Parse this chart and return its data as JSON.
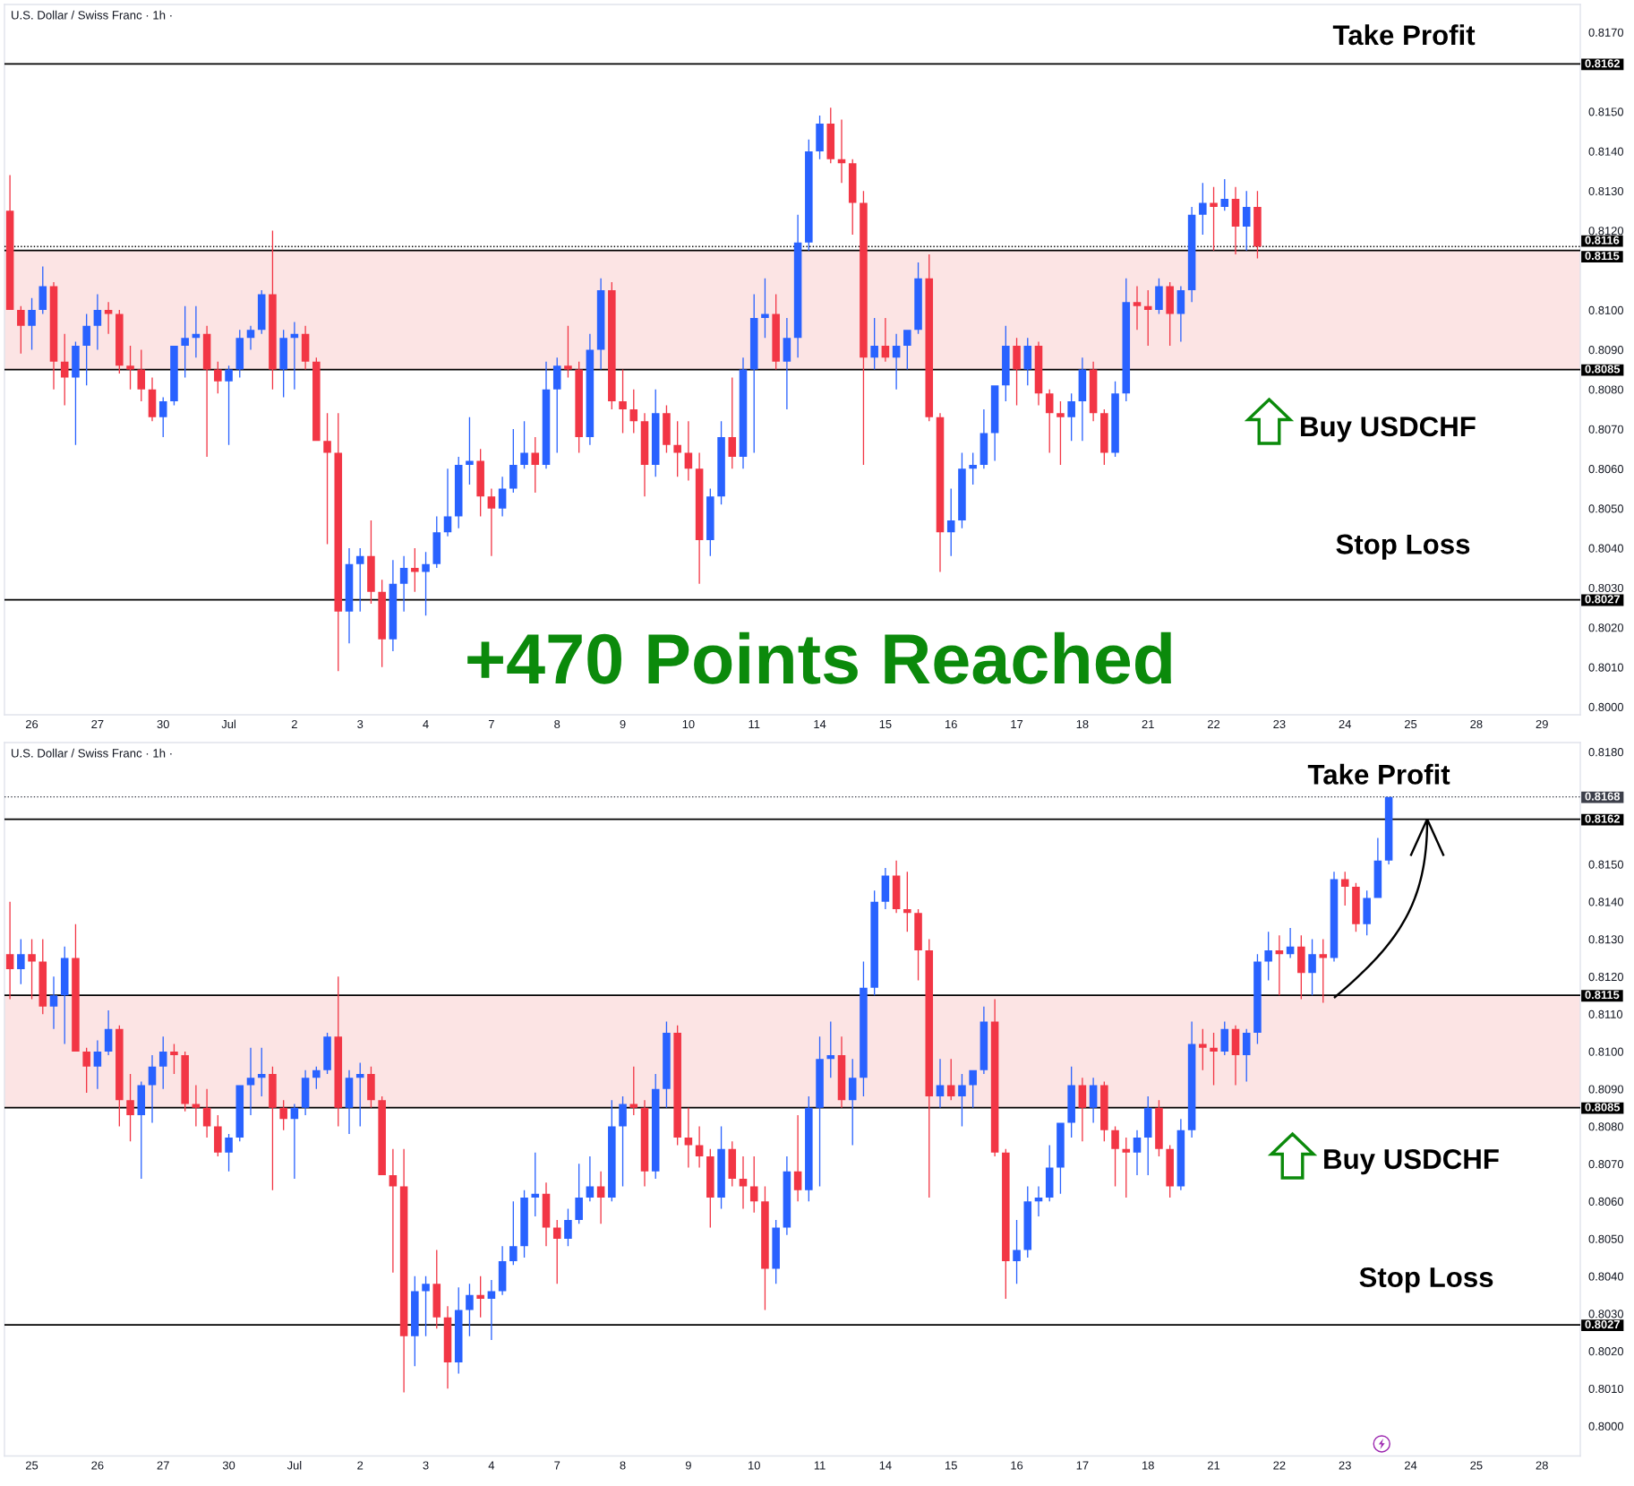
{
  "chart_data": [
    {
      "type": "candlestick",
      "title": "U.S. Dollar / Swiss Franc · 1h ·",
      "categories": [
        null,
        null,
        "26",
        null,
        null,
        null,
        null,
        null,
        "27",
        null,
        null,
        null,
        null,
        null,
        "30",
        null,
        null,
        null,
        null,
        null,
        "Jul",
        null,
        null,
        null,
        null,
        null,
        "2",
        null,
        null,
        null,
        null,
        null,
        "3",
        null,
        null,
        null,
        null,
        null,
        "4",
        null,
        null,
        null,
        null,
        null,
        "7",
        null,
        null,
        null,
        null,
        null,
        "8",
        null,
        null,
        null,
        null,
        null,
        "9",
        null,
        null,
        null,
        null,
        null,
        "10",
        null,
        null,
        null,
        null,
        null,
        "11",
        null,
        null,
        null,
        null,
        null,
        "14",
        null,
        null,
        null,
        null,
        null,
        "15",
        null,
        null,
        null,
        null,
        null,
        "16",
        null,
        null,
        null,
        null,
        null,
        "17",
        null,
        null,
        null,
        null,
        null,
        "18",
        null,
        null,
        null,
        null,
        null,
        "21",
        null,
        null,
        null,
        null,
        null,
        "22",
        null,
        null,
        null,
        null,
        null,
        "23",
        null,
        null,
        null,
        null,
        null,
        "24",
        null,
        null,
        null,
        null,
        null,
        "25",
        null,
        null,
        null,
        null,
        null,
        "28",
        null,
        null,
        null,
        null,
        null,
        "29",
        null,
        null,
        null
      ],
      "ohlc": [
        [
          0.8125,
          0.8134,
          0.81,
          0.81
        ],
        [
          0.81,
          0.8101,
          0.8089,
          0.8096
        ],
        [
          0.8096,
          0.8103,
          0.809,
          0.81
        ],
        [
          0.81,
          0.8111,
          0.8099,
          0.8106
        ],
        [
          0.8106,
          0.8107,
          0.808,
          0.8087
        ],
        [
          0.8087,
          0.8094,
          0.8076,
          0.8083
        ],
        [
          0.8083,
          0.8092,
          0.8066,
          0.8091
        ],
        [
          0.8091,
          0.8099,
          0.8081,
          0.8096
        ],
        [
          0.8096,
          0.8104,
          0.809,
          0.81
        ],
        [
          0.81,
          0.8102,
          0.8094,
          0.8099
        ],
        [
          0.8099,
          0.81,
          0.8084,
          0.8086
        ],
        [
          0.8086,
          0.8091,
          0.808,
          0.8085
        ],
        [
          0.8085,
          0.809,
          0.8077,
          0.808
        ],
        [
          0.808,
          0.8083,
          0.8072,
          0.8073
        ],
        [
          0.8073,
          0.8078,
          0.8068,
          0.8077
        ],
        [
          0.8077,
          0.8091,
          0.8076,
          0.8091
        ],
        [
          0.8091,
          0.8101,
          0.8083,
          0.8093
        ],
        [
          0.8093,
          0.8101,
          0.8088,
          0.8094
        ],
        [
          0.8094,
          0.8096,
          0.8063,
          0.8085
        ],
        [
          0.8085,
          0.8087,
          0.8079,
          0.8082
        ],
        [
          0.8082,
          0.8086,
          0.8066,
          0.8085
        ],
        [
          0.8085,
          0.8095,
          0.8083,
          0.8093
        ],
        [
          0.8093,
          0.8096,
          0.809,
          0.8095
        ],
        [
          0.8095,
          0.8105,
          0.8094,
          0.8104
        ],
        [
          0.8104,
          0.812,
          0.808,
          0.8085
        ],
        [
          0.8085,
          0.8095,
          0.8078,
          0.8093
        ],
        [
          0.8093,
          0.8097,
          0.808,
          0.8094
        ],
        [
          0.8094,
          0.8096,
          0.8085,
          0.8087
        ],
        [
          0.8087,
          0.8088,
          0.8067,
          0.8067
        ],
        [
          0.8067,
          0.8074,
          0.8041,
          0.8064
        ],
        [
          0.8064,
          0.8074,
          0.8009,
          0.8024
        ],
        [
          0.8024,
          0.804,
          0.8016,
          0.8036
        ],
        [
          0.8036,
          0.804,
          0.8024,
          0.8038
        ],
        [
          0.8038,
          0.8047,
          0.8026,
          0.8029
        ],
        [
          0.8029,
          0.8032,
          0.801,
          0.8017
        ],
        [
          0.8017,
          0.8037,
          0.8014,
          0.8031
        ],
        [
          0.8031,
          0.8038,
          0.8024,
          0.8035
        ],
        [
          0.8035,
          0.804,
          0.8029,
          0.8034
        ],
        [
          0.8034,
          0.8039,
          0.8023,
          0.8036
        ],
        [
          0.8036,
          0.8048,
          0.8035,
          0.8044
        ],
        [
          0.8044,
          0.806,
          0.8043,
          0.8048
        ],
        [
          0.8048,
          0.8063,
          0.8045,
          0.8061
        ],
        [
          0.8061,
          0.8073,
          0.8056,
          0.8062
        ],
        [
          0.8062,
          0.8065,
          0.8048,
          0.8053
        ],
        [
          0.8053,
          0.8055,
          0.8038,
          0.805
        ],
        [
          0.805,
          0.8058,
          0.8048,
          0.8055
        ],
        [
          0.8055,
          0.807,
          0.8054,
          0.8061
        ],
        [
          0.8061,
          0.8072,
          0.806,
          0.8064
        ],
        [
          0.8064,
          0.8068,
          0.8054,
          0.8061
        ],
        [
          0.8061,
          0.8087,
          0.806,
          0.808
        ],
        [
          0.808,
          0.8088,
          0.8064,
          0.8086
        ],
        [
          0.8086,
          0.8096,
          0.8083,
          0.8085
        ],
        [
          0.8085,
          0.8087,
          0.8064,
          0.8068
        ],
        [
          0.8068,
          0.8094,
          0.8066,
          0.809
        ],
        [
          0.809,
          0.8108,
          0.8085,
          0.8105
        ],
        [
          0.8105,
          0.8107,
          0.8075,
          0.8077
        ],
        [
          0.8077,
          0.8085,
          0.8069,
          0.8075
        ],
        [
          0.8075,
          0.808,
          0.8069,
          0.8072
        ],
        [
          0.8072,
          0.8074,
          0.8053,
          0.8061
        ],
        [
          0.8061,
          0.808,
          0.8058,
          0.8074
        ],
        [
          0.8074,
          0.8076,
          0.8064,
          0.8066
        ],
        [
          0.8066,
          0.8072,
          0.8058,
          0.8064
        ],
        [
          0.8064,
          0.8072,
          0.8057,
          0.806
        ],
        [
          0.806,
          0.8064,
          0.8031,
          0.8042
        ],
        [
          0.8042,
          0.8055,
          0.8038,
          0.8053
        ],
        [
          0.8053,
          0.8072,
          0.8051,
          0.8068
        ],
        [
          0.8068,
          0.8083,
          0.806,
          0.8063
        ],
        [
          0.8063,
          0.8088,
          0.806,
          0.8085
        ],
        [
          0.8085,
          0.8104,
          0.8064,
          0.8098
        ],
        [
          0.8098,
          0.8108,
          0.8093,
          0.8099
        ],
        [
          0.8099,
          0.8104,
          0.8085,
          0.8087
        ],
        [
          0.8087,
          0.8098,
          0.8075,
          0.8093
        ],
        [
          0.8093,
          0.8124,
          0.8088,
          0.8117
        ],
        [
          0.8117,
          0.8143,
          0.8115,
          0.814
        ],
        [
          0.814,
          0.8149,
          0.8138,
          0.8147
        ],
        [
          0.8147,
          0.8151,
          0.8137,
          0.8138
        ],
        [
          0.8138,
          0.8148,
          0.8132,
          0.8137
        ],
        [
          0.8137,
          0.8138,
          0.8119,
          0.8127
        ],
        [
          0.8127,
          0.813,
          0.8061,
          0.8088
        ],
        [
          0.8088,
          0.8098,
          0.8085,
          0.8091
        ],
        [
          0.8091,
          0.8098,
          0.8087,
          0.8088
        ],
        [
          0.8088,
          0.8094,
          0.808,
          0.8091
        ],
        [
          0.8091,
          0.8095,
          0.8085,
          0.8095
        ],
        [
          0.8095,
          0.8112,
          0.8094,
          0.8108
        ],
        [
          0.8108,
          0.8114,
          0.8072,
          0.8073
        ],
        [
          0.8073,
          0.8074,
          0.8034,
          0.8044
        ],
        [
          0.8044,
          0.8055,
          0.8038,
          0.8047
        ],
        [
          0.8047,
          0.8064,
          0.8045,
          0.806
        ],
        [
          0.806,
          0.8064,
          0.8056,
          0.8061
        ],
        [
          0.8061,
          0.8075,
          0.806,
          0.8069
        ],
        [
          0.8069,
          0.8081,
          0.8062,
          0.8081
        ],
        [
          0.8081,
          0.8096,
          0.8077,
          0.8091
        ],
        [
          0.8091,
          0.8093,
          0.8076,
          0.8085
        ],
        [
          0.8085,
          0.8093,
          0.8081,
          0.8091
        ],
        [
          0.8091,
          0.8092,
          0.8076,
          0.8079
        ],
        [
          0.8079,
          0.808,
          0.8064,
          0.8074
        ],
        [
          0.8074,
          0.8077,
          0.8061,
          0.8073
        ],
        [
          0.8073,
          0.8079,
          0.8067,
          0.8077
        ],
        [
          0.8077,
          0.8088,
          0.8067,
          0.8085
        ],
        [
          0.8085,
          0.8087,
          0.8072,
          0.8074
        ],
        [
          0.8074,
          0.8075,
          0.8061,
          0.8064
        ],
        [
          0.8064,
          0.8082,
          0.8063,
          0.8079
        ],
        [
          0.8079,
          0.8108,
          0.8077,
          0.8102
        ],
        [
          0.8102,
          0.8106,
          0.8095,
          0.8101
        ],
        [
          0.8101,
          0.8105,
          0.8091,
          0.81
        ],
        [
          0.81,
          0.8108,
          0.8099,
          0.8106
        ],
        [
          0.8106,
          0.8107,
          0.8091,
          0.8099
        ],
        [
          0.8099,
          0.8106,
          0.8092,
          0.8105
        ],
        [
          0.8105,
          0.8126,
          0.8102,
          0.8124
        ],
        [
          0.8124,
          0.8132,
          0.8119,
          0.8127
        ],
        [
          0.8127,
          0.8131,
          0.8115,
          0.8126
        ],
        [
          0.8126,
          0.8133,
          0.8125,
          0.8128
        ],
        [
          0.8128,
          0.8131,
          0.8114,
          0.8121
        ],
        [
          0.8121,
          0.813,
          0.8115,
          0.8126
        ],
        [
          0.8126,
          0.813,
          0.8113,
          0.8116
        ],
        null,
        null,
        null,
        null,
        null,
        null,
        null,
        null,
        null,
        null,
        null,
        null,
        null,
        null,
        null,
        null,
        null,
        null,
        null,
        null,
        null,
        null,
        null,
        null,
        null,
        null,
        null,
        null,
        null
      ],
      "colors": [
        "#f23645",
        "#f23645",
        "#2962ff",
        "#2962ff",
        "#f23645",
        "#f23645",
        "#2962ff",
        "#2962ff",
        "#2962ff",
        "#f23645",
        "#f23645",
        "#f23645",
        "#f23645",
        "#f23645",
        "#2962ff",
        "#2962ff",
        "#2962ff",
        "#2962ff",
        "#f23645",
        "#f23645",
        "#2962ff",
        "#2962ff",
        "#2962ff",
        "#2962ff",
        "#f23645",
        "#2962ff",
        "#2962ff",
        "#f23645",
        "#f23645",
        "#f23645",
        "#f23645",
        "#2962ff",
        "#2962ff",
        "#f23645",
        "#f23645",
        "#2962ff",
        "#2962ff",
        "#f23645",
        "#2962ff",
        "#2962ff",
        "#2962ff",
        "#2962ff",
        "#2962ff",
        "#f23645",
        "#f23645",
        "#2962ff",
        "#2962ff",
        "#2962ff",
        "#f23645",
        "#2962ff",
        "#2962ff",
        "#f23645",
        "#f23645",
        "#2962ff",
        "#2962ff",
        "#f23645",
        "#f23645",
        "#f23645",
        "#f23645",
        "#2962ff",
        "#f23645",
        "#f23645",
        "#f23645",
        "#f23645",
        "#2962ff",
        "#2962ff",
        "#f23645",
        "#2962ff",
        "#2962ff",
        "#2962ff",
        "#f23645",
        "#2962ff",
        "#2962ff",
        "#2962ff",
        "#2962ff",
        "#f23645",
        "#f23645",
        "#f23645",
        "#f23645",
        "#2962ff",
        "#f23645",
        "#2962ff",
        "#2962ff",
        "#2962ff",
        "#f23645",
        "#f23645",
        "#2962ff",
        "#2962ff",
        "#2962ff",
        "#2962ff",
        "#2962ff",
        "#2962ff",
        "#f23645",
        "#2962ff",
        "#f23645",
        "#f23645",
        "#f23645",
        "#2962ff",
        "#2962ff",
        "#f23645",
        "#f23645",
        "#2962ff",
        "#2962ff",
        "#f23645",
        "#f23645",
        "#2962ff",
        "#f23645",
        "#2962ff",
        "#2962ff",
        "#2962ff",
        "#f23645",
        "#2962ff",
        "#f23645",
        "#2962ff",
        "#f23645",
        null,
        null,
        null,
        null,
        null,
        null,
        null,
        null,
        null,
        null,
        null,
        null,
        null,
        null,
        null,
        null,
        null,
        null,
        null,
        null,
        null,
        null,
        null,
        null,
        null,
        null,
        null,
        null,
        null
      ],
      "ylim": [
        0.7998,
        0.8177
      ],
      "yticks": [
        {
          "value": 0.817,
          "label": "0.8170"
        },
        {
          "value": 0.815,
          "label": "0.8150"
        },
        {
          "value": 0.814,
          "label": "0.8140"
        },
        {
          "value": 0.813,
          "label": "0.8130"
        },
        {
          "value": 0.812,
          "label": "0.8120"
        },
        {
          "value": 0.81,
          "label": "0.8100"
        },
        {
          "value": 0.809,
          "label": "0.8090"
        },
        {
          "value": 0.808,
          "label": "0.8080"
        },
        {
          "value": 0.807,
          "label": "0.8070"
        },
        {
          "value": 0.806,
          "label": "0.8060"
        },
        {
          "value": 0.805,
          "label": "0.8050"
        },
        {
          "value": 0.804,
          "label": "0.8040"
        },
        {
          "value": 0.803,
          "label": "0.8030"
        },
        {
          "value": 0.802,
          "label": "0.8020"
        },
        {
          "value": 0.801,
          "label": "0.8010"
        },
        {
          "value": 0.8,
          "label": "0.8000"
        }
      ],
      "bands": [
        {
          "axis": "y",
          "from": 0.8085,
          "to": 0.8115,
          "color": "#fce4e4"
        }
      ],
      "ref_lines": [
        {
          "axis": "y",
          "value": 0.8162,
          "label": "0.8162",
          "color": "#000000"
        },
        {
          "axis": "y",
          "value": 0.8116,
          "label": "0.8116",
          "color": "#000000",
          "line_style": "dotted"
        },
        {
          "axis": "y",
          "value": 0.8115,
          "label": "0.8115",
          "color": "#000000"
        },
        {
          "axis": "y",
          "value": 0.8085,
          "label": "0.8085",
          "color": "#000000"
        },
        {
          "axis": "y",
          "value": 0.8027,
          "label": "0.8027",
          "color": "#000000"
        }
      ],
      "annotations": [
        "Take Profit",
        "Buy USDCHF",
        "Stop Loss",
        "+470 Points Reached"
      ]
    },
    {
      "type": "candlestick",
      "title": "U.S. Dollar / Swiss Franc · 1h ·",
      "categories": [
        null,
        null,
        "25",
        null,
        null,
        null,
        null,
        null,
        "26",
        null,
        null,
        null,
        null,
        null,
        "27",
        null,
        null,
        null,
        null,
        null,
        "30",
        null,
        null,
        null,
        null,
        null,
        "Jul",
        null,
        null,
        null,
        null,
        null,
        "2",
        null,
        null,
        null,
        null,
        null,
        "3",
        null,
        null,
        null,
        null,
        null,
        "4",
        null,
        null,
        null,
        null,
        null,
        "7",
        null,
        null,
        null,
        null,
        null,
        "8",
        null,
        null,
        null,
        null,
        null,
        "9",
        null,
        null,
        null,
        null,
        null,
        "10",
        null,
        null,
        null,
        null,
        null,
        "11",
        null,
        null,
        null,
        null,
        null,
        "14",
        null,
        null,
        null,
        null,
        null,
        "15",
        null,
        null,
        null,
        null,
        null,
        "16",
        null,
        null,
        null,
        null,
        null,
        "17",
        null,
        null,
        null,
        null,
        null,
        "18",
        null,
        null,
        null,
        null,
        null,
        "21",
        null,
        null,
        null,
        null,
        null,
        "22",
        null,
        null,
        null,
        null,
        null,
        "23",
        null,
        null,
        null,
        null,
        null,
        "24",
        null,
        null,
        null,
        null,
        null,
        "25",
        null,
        null,
        null,
        null,
        null,
        "28",
        null,
        null,
        null
      ],
      "ohlc": [
        [
          0.8126,
          0.814,
          0.8114,
          0.8122
        ],
        [
          0.8122,
          0.813,
          0.8118,
          0.8126
        ],
        [
          0.8126,
          0.813,
          0.8114,
          0.8124
        ],
        [
          0.8124,
          0.813,
          0.811,
          0.8112
        ],
        [
          0.8112,
          0.812,
          0.8106,
          0.8115
        ],
        [
          0.8115,
          0.8128,
          0.8102,
          0.8125
        ],
        [
          0.8125,
          0.8134,
          0.81,
          0.81
        ],
        [
          0.81,
          0.8101,
          0.8089,
          0.8096
        ],
        [
          0.8096,
          0.8103,
          0.809,
          0.81
        ],
        [
          0.81,
          0.8111,
          0.8099,
          0.8106
        ],
        [
          0.8106,
          0.8107,
          0.808,
          0.8087
        ],
        [
          0.8087,
          0.8094,
          0.8076,
          0.8083
        ],
        [
          0.8083,
          0.8092,
          0.8066,
          0.8091
        ],
        [
          0.8091,
          0.8099,
          0.8081,
          0.8096
        ],
        [
          0.8096,
          0.8104,
          0.809,
          0.81
        ],
        [
          0.81,
          0.8102,
          0.8094,
          0.8099
        ],
        [
          0.8099,
          0.81,
          0.8084,
          0.8086
        ],
        [
          0.8086,
          0.8091,
          0.808,
          0.8085
        ],
        [
          0.8085,
          0.809,
          0.8077,
          0.808
        ],
        [
          0.808,
          0.8083,
          0.8072,
          0.8073
        ],
        [
          0.8073,
          0.8078,
          0.8068,
          0.8077
        ],
        [
          0.8077,
          0.8091,
          0.8076,
          0.8091
        ],
        [
          0.8091,
          0.8101,
          0.8083,
          0.8093
        ],
        [
          0.8093,
          0.8101,
          0.8088,
          0.8094
        ],
        [
          0.8094,
          0.8096,
          0.8063,
          0.8085
        ],
        [
          0.8085,
          0.8087,
          0.8079,
          0.8082
        ],
        [
          0.8082,
          0.8086,
          0.8066,
          0.8085
        ],
        [
          0.8085,
          0.8095,
          0.8083,
          0.8093
        ],
        [
          0.8093,
          0.8096,
          0.809,
          0.8095
        ],
        [
          0.8095,
          0.8105,
          0.8094,
          0.8104
        ],
        [
          0.8104,
          0.812,
          0.808,
          0.8085
        ],
        [
          0.8085,
          0.8095,
          0.8078,
          0.8093
        ],
        [
          0.8093,
          0.8097,
          0.808,
          0.8094
        ],
        [
          0.8094,
          0.8096,
          0.8085,
          0.8087
        ],
        [
          0.8087,
          0.8088,
          0.8067,
          0.8067
        ],
        [
          0.8067,
          0.8074,
          0.8041,
          0.8064
        ],
        [
          0.8064,
          0.8074,
          0.8009,
          0.8024
        ],
        [
          0.8024,
          0.804,
          0.8016,
          0.8036
        ],
        [
          0.8036,
          0.804,
          0.8024,
          0.8038
        ],
        [
          0.8038,
          0.8047,
          0.8026,
          0.8029
        ],
        [
          0.8029,
          0.8032,
          0.801,
          0.8017
        ],
        [
          0.8017,
          0.8037,
          0.8014,
          0.8031
        ],
        [
          0.8031,
          0.8038,
          0.8024,
          0.8035
        ],
        [
          0.8035,
          0.804,
          0.8029,
          0.8034
        ],
        [
          0.8034,
          0.8039,
          0.8023,
          0.8036
        ],
        [
          0.8036,
          0.8048,
          0.8035,
          0.8044
        ],
        [
          0.8044,
          0.806,
          0.8043,
          0.8048
        ],
        [
          0.8048,
          0.8063,
          0.8045,
          0.8061
        ],
        [
          0.8061,
          0.8073,
          0.8056,
          0.8062
        ],
        [
          0.8062,
          0.8065,
          0.8048,
          0.8053
        ],
        [
          0.8053,
          0.8055,
          0.8038,
          0.805
        ],
        [
          0.805,
          0.8058,
          0.8048,
          0.8055
        ],
        [
          0.8055,
          0.807,
          0.8054,
          0.8061
        ],
        [
          0.8061,
          0.8072,
          0.806,
          0.8064
        ],
        [
          0.8064,
          0.8068,
          0.8054,
          0.8061
        ],
        [
          0.8061,
          0.8087,
          0.806,
          0.808
        ],
        [
          0.808,
          0.8088,
          0.8064,
          0.8086
        ],
        [
          0.8086,
          0.8096,
          0.8083,
          0.8085
        ],
        [
          0.8085,
          0.8087,
          0.8064,
          0.8068
        ],
        [
          0.8068,
          0.8094,
          0.8066,
          0.809
        ],
        [
          0.809,
          0.8108,
          0.8085,
          0.8105
        ],
        [
          0.8105,
          0.8107,
          0.8075,
          0.8077
        ],
        [
          0.8077,
          0.8085,
          0.8069,
          0.8075
        ],
        [
          0.8075,
          0.808,
          0.8069,
          0.8072
        ],
        [
          0.8072,
          0.8074,
          0.8053,
          0.8061
        ],
        [
          0.8061,
          0.808,
          0.8058,
          0.8074
        ],
        [
          0.8074,
          0.8076,
          0.8064,
          0.8066
        ],
        [
          0.8066,
          0.8072,
          0.8058,
          0.8064
        ],
        [
          0.8064,
          0.8072,
          0.8057,
          0.806
        ],
        [
          0.806,
          0.8064,
          0.8031,
          0.8042
        ],
        [
          0.8042,
          0.8055,
          0.8038,
          0.8053
        ],
        [
          0.8053,
          0.8072,
          0.8051,
          0.8068
        ],
        [
          0.8068,
          0.8083,
          0.806,
          0.8063
        ],
        [
          0.8063,
          0.8088,
          0.806,
          0.8085
        ],
        [
          0.8085,
          0.8104,
          0.8064,
          0.8098
        ],
        [
          0.8098,
          0.8108,
          0.8093,
          0.8099
        ],
        [
          0.8099,
          0.8104,
          0.8085,
          0.8087
        ],
        [
          0.8087,
          0.8098,
          0.8075,
          0.8093
        ],
        [
          0.8093,
          0.8124,
          0.8088,
          0.8117
        ],
        [
          0.8117,
          0.8143,
          0.8115,
          0.814
        ],
        [
          0.814,
          0.8149,
          0.8138,
          0.8147
        ],
        [
          0.8147,
          0.8151,
          0.8137,
          0.8138
        ],
        [
          0.8138,
          0.8148,
          0.8132,
          0.8137
        ],
        [
          0.8137,
          0.8138,
          0.8119,
          0.8127
        ],
        [
          0.8127,
          0.813,
          0.8061,
          0.8088
        ],
        [
          0.8088,
          0.8098,
          0.8085,
          0.8091
        ],
        [
          0.8091,
          0.8098,
          0.8087,
          0.8088
        ],
        [
          0.8088,
          0.8094,
          0.808,
          0.8091
        ],
        [
          0.8091,
          0.8095,
          0.8085,
          0.8095
        ],
        [
          0.8095,
          0.8112,
          0.8094,
          0.8108
        ],
        [
          0.8108,
          0.8114,
          0.8072,
          0.8073
        ],
        [
          0.8073,
          0.8074,
          0.8034,
          0.8044
        ],
        [
          0.8044,
          0.8055,
          0.8038,
          0.8047
        ],
        [
          0.8047,
          0.8064,
          0.8045,
          0.806
        ],
        [
          0.806,
          0.8064,
          0.8056,
          0.8061
        ],
        [
          0.8061,
          0.8075,
          0.806,
          0.8069
        ],
        [
          0.8069,
          0.8081,
          0.8062,
          0.8081
        ],
        [
          0.8081,
          0.8096,
          0.8077,
          0.8091
        ],
        [
          0.8091,
          0.8093,
          0.8076,
          0.8085
        ],
        [
          0.8085,
          0.8093,
          0.8081,
          0.8091
        ],
        [
          0.8091,
          0.8092,
          0.8076,
          0.8079
        ],
        [
          0.8079,
          0.808,
          0.8064,
          0.8074
        ],
        [
          0.8074,
          0.8077,
          0.8061,
          0.8073
        ],
        [
          0.8073,
          0.8079,
          0.8067,
          0.8077
        ],
        [
          0.8077,
          0.8088,
          0.8067,
          0.8085
        ],
        [
          0.8085,
          0.8087,
          0.8072,
          0.8074
        ],
        [
          0.8074,
          0.8075,
          0.8061,
          0.8064
        ],
        [
          0.8064,
          0.8082,
          0.8063,
          0.8079
        ],
        [
          0.8079,
          0.8108,
          0.8077,
          0.8102
        ],
        [
          0.8102,
          0.8106,
          0.8095,
          0.8101
        ],
        [
          0.8101,
          0.8105,
          0.8091,
          0.81
        ],
        [
          0.81,
          0.8108,
          0.8099,
          0.8106
        ],
        [
          0.8106,
          0.8107,
          0.8091,
          0.8099
        ],
        [
          0.8099,
          0.8106,
          0.8092,
          0.8105
        ],
        [
          0.8105,
          0.8126,
          0.8102,
          0.8124
        ],
        [
          0.8124,
          0.8132,
          0.8119,
          0.8127
        ],
        [
          0.8127,
          0.8131,
          0.8115,
          0.8126
        ],
        [
          0.8126,
          0.8133,
          0.8125,
          0.8128
        ],
        [
          0.8128,
          0.8131,
          0.8114,
          0.8121
        ],
        [
          0.8121,
          0.813,
          0.8115,
          0.8126
        ],
        [
          0.8126,
          0.813,
          0.8113,
          0.8125
        ],
        [
          0.8125,
          0.8148,
          0.8124,
          0.8146
        ],
        [
          0.8146,
          0.8148,
          0.8139,
          0.8144
        ],
        [
          0.8144,
          0.8145,
          0.8132,
          0.8134
        ],
        [
          0.8134,
          0.8143,
          0.8131,
          0.8141
        ],
        [
          0.8141,
          0.8157,
          0.8141,
          0.8151
        ],
        [
          0.8151,
          0.8168,
          0.815,
          0.8168
        ],
        null,
        null,
        null,
        null,
        null,
        null,
        null,
        null,
        null,
        null,
        null,
        null,
        null,
        null,
        null,
        null,
        null
      ],
      "colors": [
        "#f23645",
        "#2962ff",
        "#f23645",
        "#f23645",
        "#2962ff",
        "#2962ff",
        "#f23645",
        "#f23645",
        "#2962ff",
        "#2962ff",
        "#f23645",
        "#f23645",
        "#2962ff",
        "#2962ff",
        "#2962ff",
        "#f23645",
        "#f23645",
        "#f23645",
        "#f23645",
        "#f23645",
        "#2962ff",
        "#2962ff",
        "#2962ff",
        "#2962ff",
        "#f23645",
        "#f23645",
        "#2962ff",
        "#2962ff",
        "#2962ff",
        "#2962ff",
        "#f23645",
        "#2962ff",
        "#2962ff",
        "#f23645",
        "#f23645",
        "#f23645",
        "#f23645",
        "#2962ff",
        "#2962ff",
        "#f23645",
        "#f23645",
        "#2962ff",
        "#2962ff",
        "#f23645",
        "#2962ff",
        "#2962ff",
        "#2962ff",
        "#2962ff",
        "#2962ff",
        "#f23645",
        "#f23645",
        "#2962ff",
        "#2962ff",
        "#2962ff",
        "#f23645",
        "#2962ff",
        "#2962ff",
        "#f23645",
        "#f23645",
        "#2962ff",
        "#2962ff",
        "#f23645",
        "#f23645",
        "#f23645",
        "#f23645",
        "#2962ff",
        "#f23645",
        "#f23645",
        "#f23645",
        "#f23645",
        "#2962ff",
        "#2962ff",
        "#f23645",
        "#2962ff",
        "#2962ff",
        "#2962ff",
        "#f23645",
        "#2962ff",
        "#2962ff",
        "#2962ff",
        "#2962ff",
        "#f23645",
        "#f23645",
        "#f23645",
        "#f23645",
        "#2962ff",
        "#f23645",
        "#2962ff",
        "#2962ff",
        "#2962ff",
        "#f23645",
        "#f23645",
        "#2962ff",
        "#2962ff",
        "#2962ff",
        "#2962ff",
        "#2962ff",
        "#2962ff",
        "#f23645",
        "#2962ff",
        "#f23645",
        "#f23645",
        "#f23645",
        "#2962ff",
        "#2962ff",
        "#f23645",
        "#f23645",
        "#2962ff",
        "#2962ff",
        "#f23645",
        "#f23645",
        "#2962ff",
        "#f23645",
        "#2962ff",
        "#2962ff",
        "#2962ff",
        "#f23645",
        "#2962ff",
        "#f23645",
        "#2962ff",
        "#f23645",
        "#2962ff",
        "#f23645",
        "#f23645",
        "#2962ff",
        "#2962ff",
        "#2962ff",
        null,
        null,
        null,
        null,
        null,
        null,
        null,
        null,
        null,
        null,
        null,
        null,
        null,
        null,
        null,
        null,
        null
      ],
      "ylim": [
        0.7992,
        0.81825
      ],
      "yticks": [
        {
          "value": 0.818,
          "label": "0.8180"
        },
        {
          "value": 0.815,
          "label": "0.8150"
        },
        {
          "value": 0.814,
          "label": "0.8140"
        },
        {
          "value": 0.813,
          "label": "0.8130"
        },
        {
          "value": 0.812,
          "label": "0.8120"
        },
        {
          "value": 0.811,
          "label": "0.8110"
        },
        {
          "value": 0.81,
          "label": "0.8100"
        },
        {
          "value": 0.809,
          "label": "0.8090"
        },
        {
          "value": 0.808,
          "label": "0.8080"
        },
        {
          "value": 0.807,
          "label": "0.8070"
        },
        {
          "value": 0.806,
          "label": "0.8060"
        },
        {
          "value": 0.805,
          "label": "0.8050"
        },
        {
          "value": 0.804,
          "label": "0.8040"
        },
        {
          "value": 0.803,
          "label": "0.8030"
        },
        {
          "value": 0.802,
          "label": "0.8020"
        },
        {
          "value": 0.801,
          "label": "0.8010"
        },
        {
          "value": 0.8,
          "label": "0.8000"
        }
      ],
      "bands": [
        {
          "axis": "y",
          "from": 0.8085,
          "to": 0.8115,
          "color": "#fce4e4"
        }
      ],
      "ref_lines": [
        {
          "axis": "y",
          "value": 0.8168,
          "label": "0.8168",
          "color": "#3c3f4a",
          "line_style": "dotted"
        },
        {
          "axis": "y",
          "value": 0.8162,
          "label": "0.8162",
          "color": "#000000"
        },
        {
          "axis": "y",
          "value": 0.8115,
          "label": "0.8115",
          "color": "#000000"
        },
        {
          "axis": "y",
          "value": 0.8085,
          "label": "0.8085",
          "color": "#000000"
        },
        {
          "axis": "y",
          "value": 0.8027,
          "label": "0.8027",
          "color": "#000000"
        }
      ],
      "annotations": [
        "Take Profit",
        "Buy USDCHF",
        "Stop Loss"
      ]
    }
  ]
}
